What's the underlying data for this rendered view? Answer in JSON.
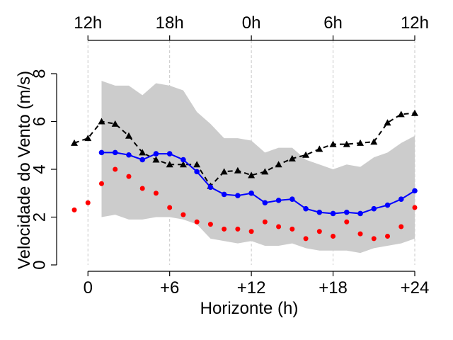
{
  "chart_data": {
    "type": "line",
    "xlabel": "Horizonte (h)",
    "ylabel": "Velocidade do Vento (m/s)",
    "xlim": [
      -2.3,
      25.3
    ],
    "ylim": [
      0,
      8
    ],
    "x_ticks": [
      {
        "value": 0,
        "label": "0"
      },
      {
        "value": 6,
        "label": "+6"
      },
      {
        "value": 12,
        "label": "+12"
      },
      {
        "value": 18,
        "label": "+18"
      },
      {
        "value": 24,
        "label": "+24"
      }
    ],
    "y_ticks": [
      {
        "value": 0,
        "label": "0"
      },
      {
        "value": 2,
        "label": "2"
      },
      {
        "value": 4,
        "label": "4"
      },
      {
        "value": 6,
        "label": "6"
      },
      {
        "value": 8,
        "label": "8"
      }
    ],
    "top_ticks": [
      {
        "value": 0,
        "label": "12h"
      },
      {
        "value": 6,
        "label": "18h"
      },
      {
        "value": 12,
        "label": "0h"
      },
      {
        "value": 18,
        "label": "6h"
      },
      {
        "value": 24,
        "label": "12h"
      }
    ],
    "vertical_gridlines": [
      0,
      6,
      12,
      18,
      24
    ],
    "band": {
      "x": [
        1,
        2,
        3,
        4,
        5,
        6,
        7,
        8,
        9,
        10,
        11,
        12,
        13,
        14,
        15,
        16,
        17,
        18,
        19,
        20,
        21,
        22,
        23,
        24
      ],
      "upper": [
        7.7,
        7.5,
        7.5,
        7.1,
        7.6,
        7.5,
        7.3,
        6.4,
        5.9,
        5.3,
        5.3,
        5.2,
        4.7,
        4.9,
        4.9,
        4.4,
        4.2,
        4.0,
        4.2,
        4.1,
        4.5,
        4.7,
        5.1,
        5.4
      ],
      "lower": [
        2.0,
        2.1,
        1.9,
        1.9,
        2.0,
        2.0,
        1.9,
        1.7,
        1.1,
        1.0,
        0.9,
        1.0,
        0.8,
        0.8,
        0.9,
        0.7,
        0.6,
        0.6,
        0.6,
        0.5,
        0.7,
        0.8,
        0.9,
        1.1
      ],
      "color": "#cccccc"
    },
    "series": [
      {
        "marker": "triangle",
        "line": "dashed",
        "color": "#000000",
        "x": [
          -1,
          0,
          1,
          2,
          3,
          4,
          5,
          6,
          7,
          8,
          9,
          10,
          11,
          12,
          13,
          14,
          15,
          16,
          17,
          18,
          19,
          20,
          21,
          22,
          23,
          24
        ],
        "values": [
          5.1,
          5.3,
          6.0,
          5.9,
          5.4,
          4.7,
          4.4,
          4.2,
          4.2,
          4.2,
          3.3,
          3.9,
          3.95,
          3.75,
          3.9,
          4.2,
          4.45,
          4.6,
          4.85,
          5.05,
          5.05,
          5.1,
          5.15,
          5.95,
          6.3,
          6.35
        ]
      },
      {
        "marker": "circle",
        "line": "solid",
        "color": "#0000ff",
        "x": [
          1,
          2,
          3,
          4,
          5,
          6,
          7,
          8,
          9,
          10,
          11,
          12,
          13,
          14,
          15,
          16,
          17,
          18,
          19,
          20,
          21,
          22,
          23,
          24
        ],
        "values": [
          4.7,
          4.7,
          4.6,
          4.4,
          4.65,
          4.65,
          4.4,
          3.9,
          3.25,
          2.95,
          2.9,
          3.0,
          2.6,
          2.7,
          2.75,
          2.35,
          2.2,
          2.15,
          2.2,
          2.15,
          2.35,
          2.5,
          2.75,
          3.1
        ]
      },
      {
        "marker": "dot",
        "line": "none",
        "color": "#ff0000",
        "x": [
          -1,
          0,
          1,
          2,
          3,
          4,
          5,
          6,
          7,
          8,
          9,
          10,
          11,
          12,
          13,
          14,
          15,
          16,
          17,
          18,
          19,
          20,
          21,
          22,
          23,
          24
        ],
        "values": [
          2.3,
          2.6,
          3.4,
          4.0,
          3.7,
          3.2,
          3.0,
          2.4,
          2.1,
          1.8,
          1.7,
          1.5,
          1.5,
          1.4,
          1.8,
          1.6,
          1.5,
          1.1,
          1.4,
          1.2,
          1.8,
          1.3,
          1.1,
          1.2,
          1.6,
          2.4
        ]
      }
    ],
    "legend": "none",
    "grid": "vertical dashed"
  }
}
